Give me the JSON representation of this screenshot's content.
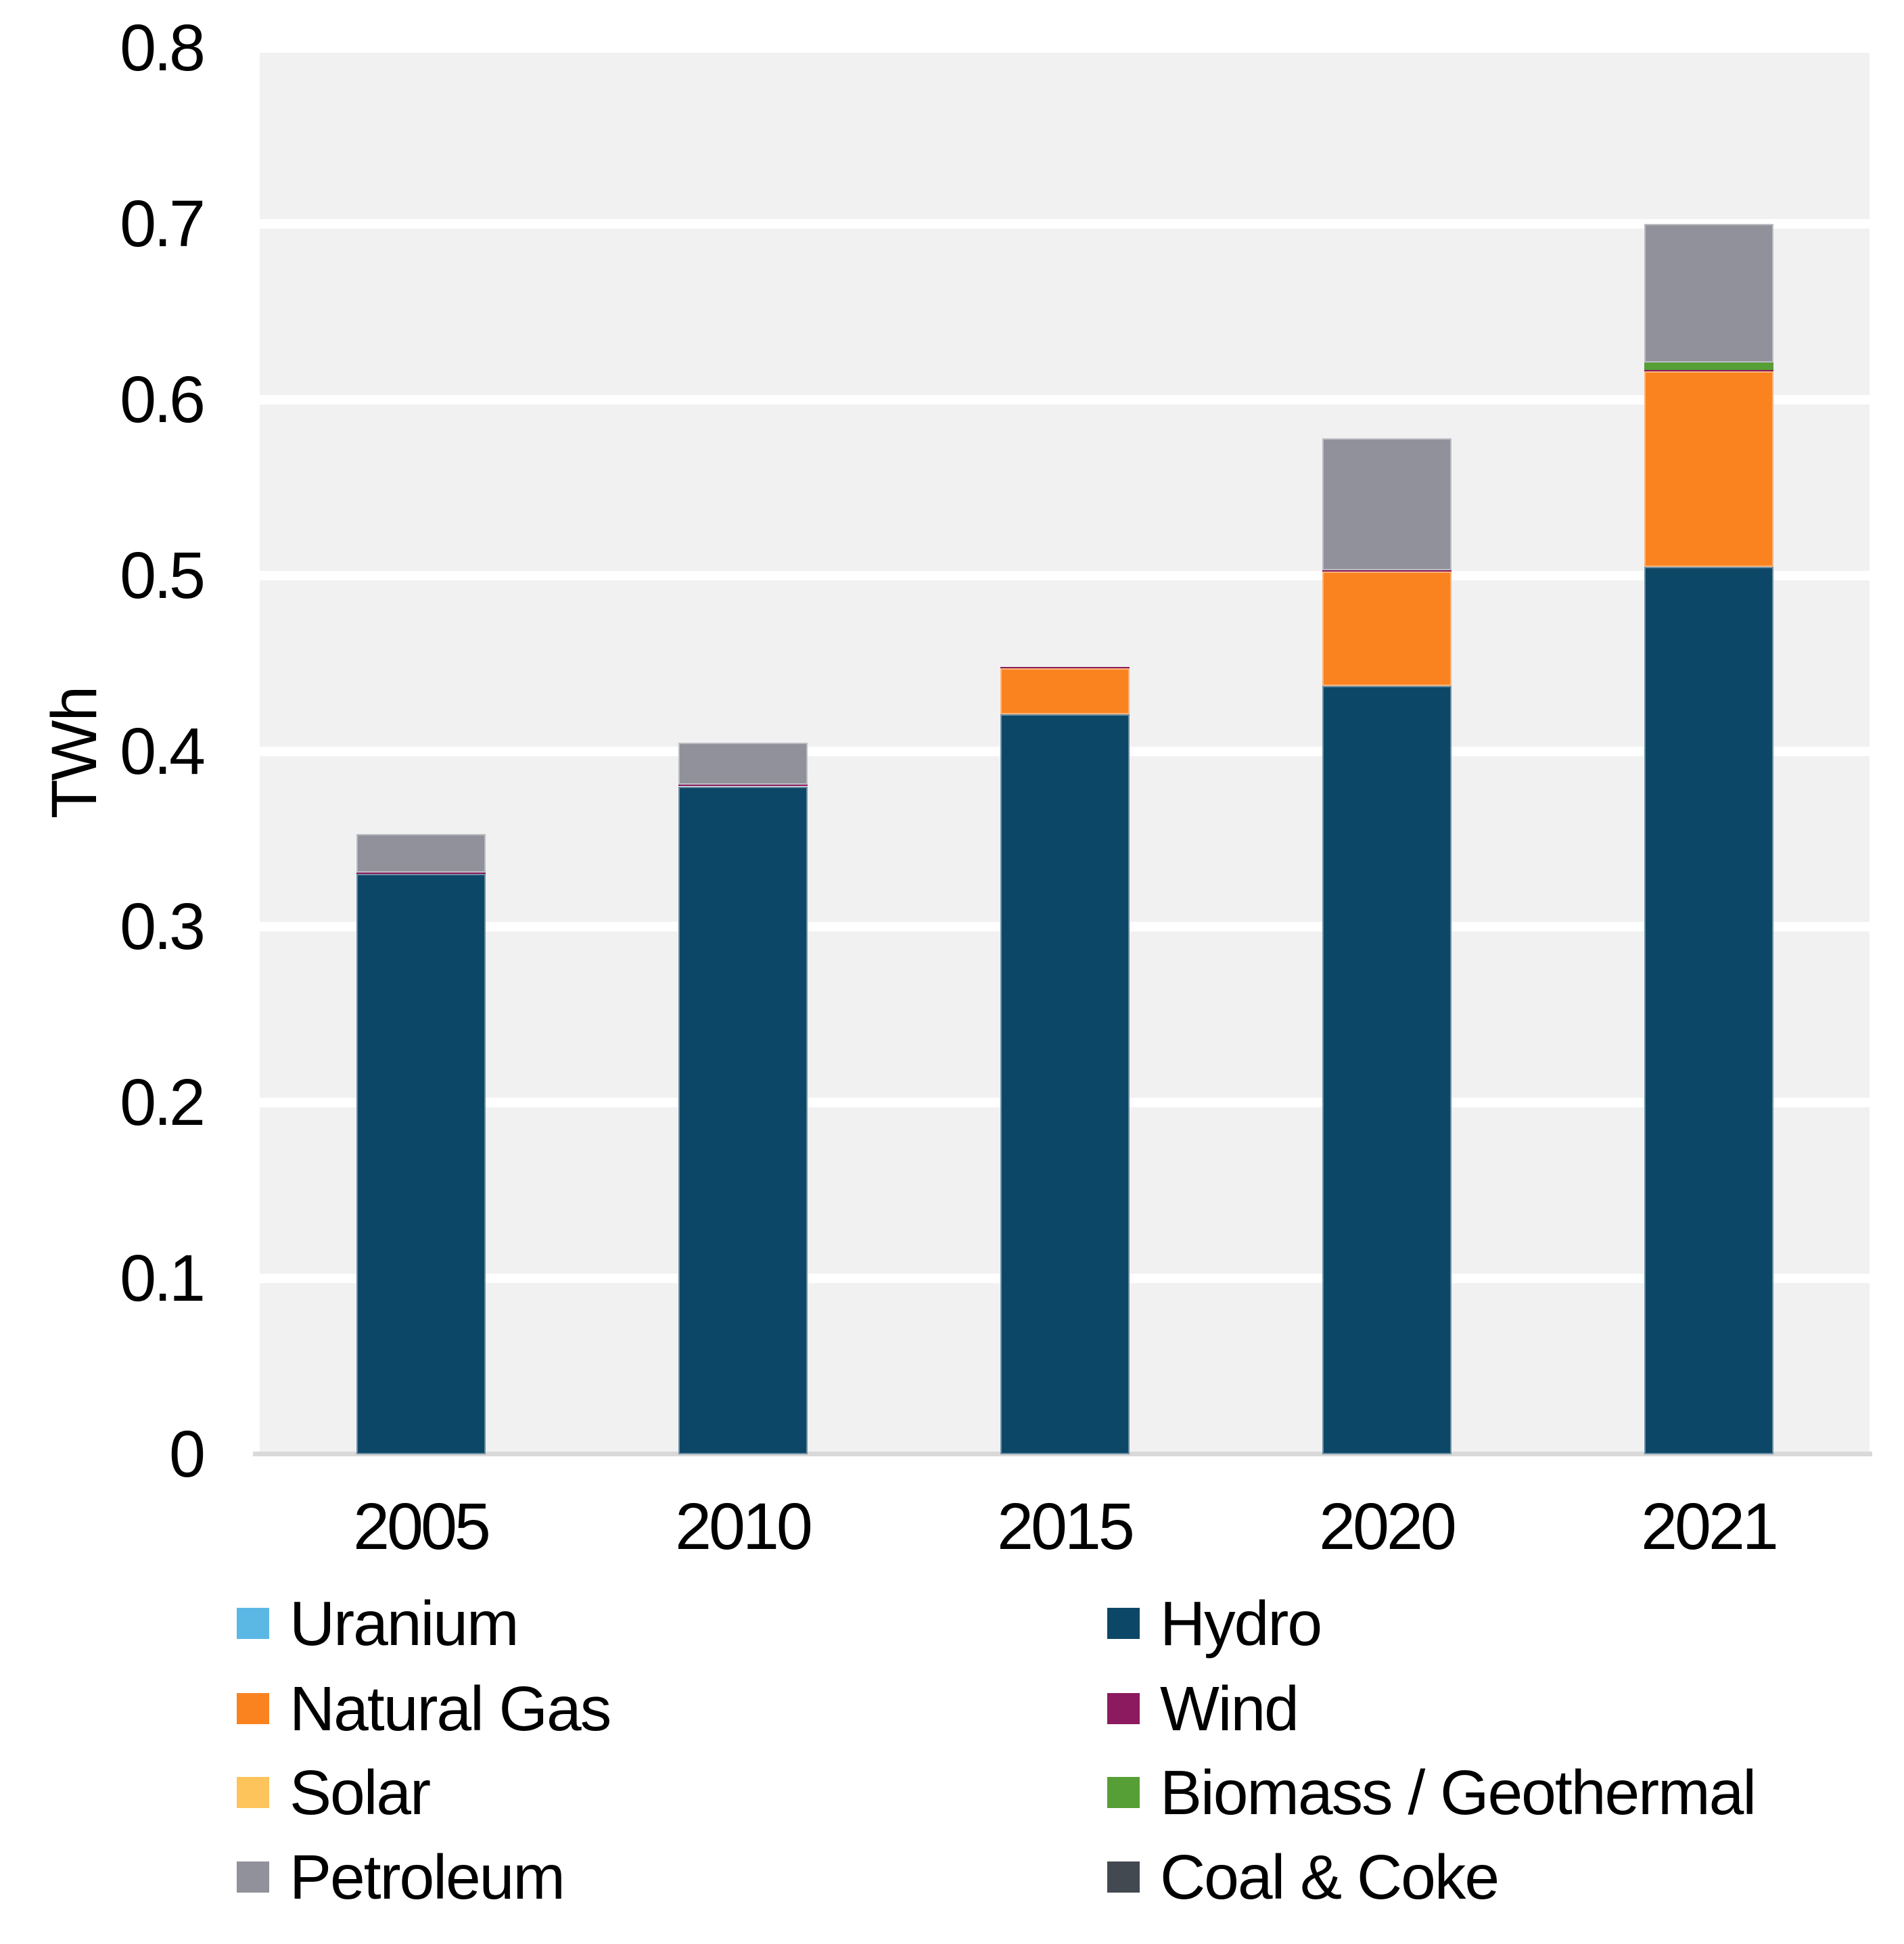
{
  "chart_data": {
    "type": "bar",
    "subtype": "stacked-vertical",
    "title": "",
    "ylabel": "TWh",
    "xlabel": "",
    "ylim": [
      0,
      0.8
    ],
    "grid": "horizontal-white-on-gray",
    "legend_position": "bottom-two-columns",
    "categories": [
      "2005",
      "2010",
      "2015",
      "2020",
      "2021"
    ],
    "y_ticks": [
      "0.8",
      "0.7",
      "0.6",
      "0.5",
      "0.4",
      "0.3",
      "0.2",
      "0.1",
      "0"
    ],
    "series": [
      {
        "name": "Uranium",
        "color": "#5BB8E5",
        "values": [
          0,
          0,
          0,
          0,
          0
        ]
      },
      {
        "name": "Hydro",
        "color": "#0D4768",
        "values": [
          0.33,
          0.38,
          0.421,
          0.437,
          0.505
        ]
      },
      {
        "name": "Natural Gas",
        "color": "#FA8320",
        "values": [
          0,
          0,
          0.026,
          0.065,
          0.111
        ]
      },
      {
        "name": "Wind",
        "color": "#8C1A5E",
        "values": [
          0.001,
          0.001,
          0.001,
          0.001,
          0.001
        ]
      },
      {
        "name": "Solar",
        "color": "#FCC45B",
        "values": [
          0,
          0,
          0,
          0,
          0
        ]
      },
      {
        "name": "Biomass / Geothermal",
        "color": "#569E36",
        "values": [
          0,
          0,
          0,
          0,
          0.004
        ]
      },
      {
        "name": "Petroleum",
        "color": "#90919A",
        "values": [
          0.022,
          0.024,
          0,
          0.075,
          0.079
        ]
      },
      {
        "name": "Coal & Coke",
        "color": "#434951",
        "values": [
          0,
          0,
          0,
          0,
          0
        ]
      }
    ],
    "stack_totals": [
      0.353,
      0.405,
      0.448,
      0.578,
      0.7
    ],
    "legend": {
      "columns": [
        [
          "Uranium",
          "Natural Gas",
          "Solar",
          "Petroleum"
        ],
        [
          "Hydro",
          "Wind",
          "Biomass / Geothermal",
          "Coal & Coke"
        ]
      ]
    },
    "colors": {
      "plot_background": "#F1F1F2",
      "gridline": "#FFFFFF",
      "axis_line": "#D9D9D9",
      "text": "#000000"
    }
  }
}
